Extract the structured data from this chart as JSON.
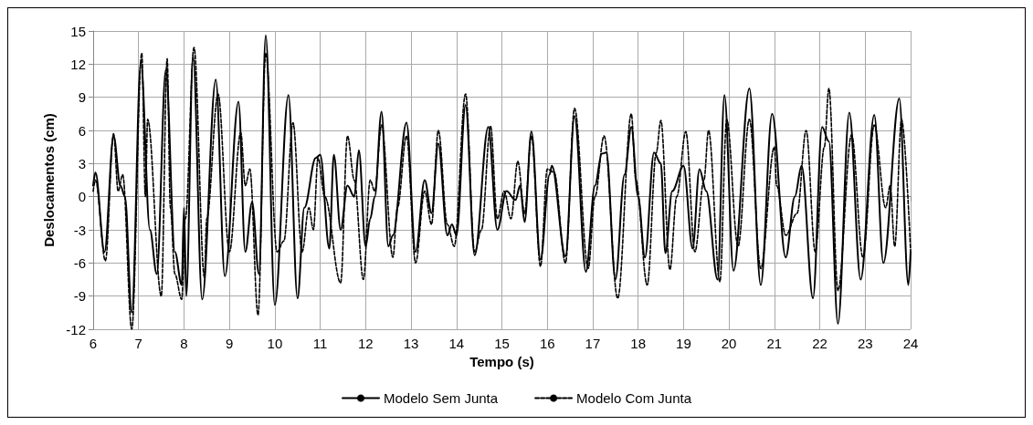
{
  "chart_data": {
    "type": "line",
    "xlabel": "Tempo (s)",
    "ylabel": "Deslocamentos (cm)",
    "xlim": [
      6,
      24
    ],
    "xticks": [
      6,
      7,
      8,
      9,
      10,
      11,
      12,
      13,
      14,
      15,
      16,
      17,
      18,
      19,
      20,
      21,
      22,
      23,
      24
    ],
    "ylim": [
      -12,
      15
    ],
    "yticks": [
      -12,
      -9,
      -6,
      -3,
      0,
      3,
      6,
      9,
      12,
      15
    ],
    "grid": true,
    "legend": "bottom",
    "marker": "none",
    "series": [
      {
        "name": "Modelo Sem Junta",
        "color": "#000000",
        "line_style": "solid",
        "x": [
          6,
          6.05,
          6.25,
          6.45,
          6.6,
          6.7,
          6.85,
          7.05,
          7.25,
          7.4,
          7.6,
          7.8,
          7.95,
          8,
          8.05,
          8.2,
          8.4,
          8.7,
          8.9,
          9.2,
          9.35,
          9.5,
          9.65,
          9.8,
          10,
          10.3,
          10.5,
          10.65,
          10.9,
          11,
          11.2,
          11.3,
          11.45,
          11.6,
          11.75,
          11.85,
          12,
          12.1,
          12.2,
          12.35,
          12.5,
          12.6,
          12.9,
          13.1,
          13.3,
          13.45,
          13.6,
          13.8,
          13.9,
          14,
          14.2,
          14.4,
          14.7,
          14.9,
          15.1,
          15.3,
          15.4,
          15.5,
          15.65,
          15.85,
          16.05,
          16.1,
          16.4,
          16.6,
          16.85,
          17.05,
          17.2,
          17.3,
          17.5,
          17.7,
          17.85,
          18,
          18.15,
          18.35,
          18.5,
          18.6,
          18.75,
          19,
          19.2,
          19.35,
          19.5,
          19.75,
          19.9,
          20.1,
          20.45,
          20.7,
          20.95,
          21.25,
          21.45,
          21.6,
          21.85,
          22.05,
          22.2,
          22.4,
          22.65,
          22.9,
          23.2,
          23.4,
          23.75,
          23.95,
          24
        ],
        "values": [
          1,
          2.2,
          -5,
          5.5,
          1,
          0,
          -10.5,
          12.2,
          -3,
          -7,
          11.5,
          -5,
          -8,
          -1,
          -9,
          12.8,
          -9.3,
          10.6,
          -7.2,
          8.6,
          -5,
          -0.5,
          -7,
          14.6,
          -9.8,
          9.2,
          -9.2,
          -1,
          3.5,
          3.8,
          -4.7,
          3.8,
          -3,
          1,
          0,
          4.2,
          -4.5,
          -2,
          0,
          7.7,
          -4.5,
          -3.5,
          6.7,
          -5,
          1.5,
          -1.5,
          4.8,
          -3.5,
          -2.5,
          -3.5,
          8.3,
          -5.3,
          6.3,
          -3,
          0.5,
          -0.3,
          1,
          -2.3,
          5.9,
          -5.7,
          2,
          2.8,
          -5.4,
          7.3,
          -6.8,
          1,
          3.9,
          4,
          -7.5,
          2,
          6.3,
          0,
          -5.5,
          4,
          3,
          -5.1,
          0.5,
          2.8,
          -4.7,
          2.5,
          0.5,
          -7.5,
          9.2,
          -6.7,
          9.8,
          -8,
          7.5,
          -5.5,
          0,
          2.8,
          -9.2,
          6.3,
          5,
          -11.5,
          7.6,
          -7.5,
          7.4,
          -6,
          8.9,
          -8,
          -5
        ]
      },
      {
        "name": "Modelo Com Junta",
        "color": "#000000",
        "line_style": "dashed",
        "x": [
          6,
          6.05,
          6.27,
          6.45,
          6.55,
          6.65,
          6.85,
          7.07,
          7.15,
          7.2,
          7.5,
          7.63,
          7.7,
          7.8,
          7.95,
          8.03,
          8.22,
          8.45,
          8.5,
          8.75,
          9,
          9.25,
          9.35,
          9.45,
          9.63,
          9.8,
          10.05,
          10.2,
          10.4,
          10.6,
          10.75,
          10.85,
          10.95,
          11.1,
          11.45,
          11.6,
          11.75,
          11.95,
          12.1,
          12.2,
          12.35,
          12.6,
          12.7,
          12.9,
          13.1,
          13.3,
          13.45,
          13.6,
          13.8,
          13.95,
          14.2,
          14.4,
          14.55,
          14.75,
          14.9,
          15.05,
          15.2,
          15.35,
          15.5,
          15.65,
          15.85,
          16,
          16.15,
          16.4,
          16.6,
          16.9,
          17.05,
          17.25,
          17.55,
          17.85,
          17.95,
          18.2,
          18.4,
          18.5,
          18.7,
          18.85,
          19.05,
          19.25,
          19.45,
          19.55,
          19.8,
          19.95,
          20.2,
          20.45,
          20.7,
          21,
          21.05,
          21.25,
          21.5,
          21.7,
          21.9,
          22.1,
          22.2,
          22.4,
          22.7,
          22.95,
          23.2,
          23.45,
          23.55,
          23.65,
          23.8,
          24
        ],
        "values": [
          0.5,
          1.5,
          -5.8,
          5.7,
          0.5,
          2,
          -12,
          13,
          0,
          7,
          -9,
          12.5,
          -1,
          -7,
          -9.3,
          -2,
          13.5,
          -7.3,
          -2,
          9.3,
          -5,
          5.8,
          1,
          2.5,
          -10.7,
          13,
          -5,
          -4,
          6.7,
          -5,
          -1,
          -3,
          3.5,
          0,
          -7.8,
          5.5,
          1.5,
          -7.5,
          1.5,
          0.5,
          6.5,
          -5.5,
          -1,
          5.5,
          -6,
          0.5,
          -2.5,
          6,
          -2.5,
          -4.5,
          9.3,
          -5,
          -3,
          6.4,
          -2,
          0.5,
          -2,
          3.2,
          -1.5,
          5.5,
          -6.3,
          2.5,
          2.2,
          -6,
          8,
          -6.5,
          0,
          5.5,
          -9.2,
          7.5,
          1.5,
          -8,
          4,
          6.9,
          -6.6,
          0,
          5.9,
          -5,
          1.5,
          6,
          -7.7,
          7,
          -4.5,
          7,
          -6.5,
          4.5,
          1,
          -3.5,
          -1.5,
          6,
          -5,
          4.5,
          9.8,
          -8.5,
          5.6,
          -5.5,
          6.5,
          -1,
          1,
          -4.5,
          7,
          -5
        ]
      }
    ]
  }
}
